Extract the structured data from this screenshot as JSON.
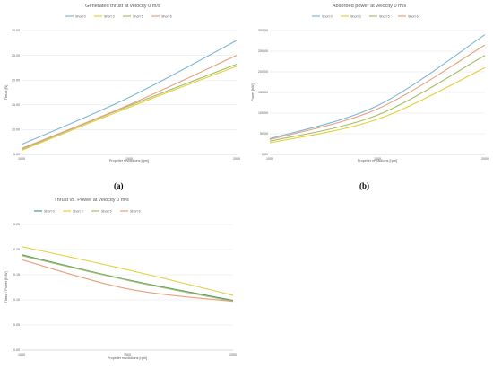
{
  "chart_data": [
    {
      "type": "line",
      "title": "Generated thrust at velocity 0 m/s",
      "xlabel": "Propeller revolutions [rpm]",
      "ylabel": "Thrust [N]",
      "x": [
        1000,
        1500,
        2000
      ],
      "xlim": [
        1000,
        2000
      ],
      "ylim": [
        5,
        30
      ],
      "yticks": [
        "5.00",
        "10.00",
        "15.00",
        "20.00",
        "25.00",
        "30.00"
      ],
      "xticks": [
        "1000",
        "1500",
        "2000"
      ],
      "grid": true,
      "legend": "top",
      "series": [
        {
          "name": "Short 0",
          "color": "#7fb6d9",
          "points": [
            [
              1000,
              7.0
            ],
            [
              1500,
              16.5
            ],
            [
              2000,
              28.0
            ]
          ]
        },
        {
          "name": "Short 3",
          "color": "#e3cf3c",
          "points": [
            [
              1000,
              5.8
            ],
            [
              1500,
              14.5
            ],
            [
              2000,
              22.8
            ]
          ]
        },
        {
          "name": "Short 5",
          "color": "#a6bf6a",
          "points": [
            [
              1000,
              6.0
            ],
            [
              1500,
              14.8
            ],
            [
              2000,
              23.2
            ]
          ]
        },
        {
          "name": "Short 6",
          "color": "#e8a07c",
          "points": [
            [
              1000,
              6.2
            ],
            [
              1500,
              15.0
            ],
            [
              2000,
              25.0
            ]
          ]
        }
      ]
    },
    {
      "type": "line",
      "title": "Absorbed power at velocity 0 m/s",
      "xlabel": "Propeller revolutions [rpm]",
      "ylabel": "Power [kW]",
      "x": [
        1000,
        1500,
        2000
      ],
      "xlim": [
        1000,
        2000
      ],
      "ylim": [
        0,
        300
      ],
      "yticks": [
        "0.00",
        "50.00",
        "100.00",
        "150.00",
        "200.00",
        "250.00",
        "300.00"
      ],
      "xticks": [
        "1000",
        "1500",
        "2000"
      ],
      "grid": true,
      "legend": "top",
      "series": [
        {
          "name": "Short 0",
          "color": "#7fb6d9",
          "points": [
            [
              1000,
              38
            ],
            [
              1500,
              118
            ],
            [
              2000,
              290
            ]
          ]
        },
        {
          "name": "Short 3",
          "color": "#e3cf3c",
          "points": [
            [
              1000,
              28
            ],
            [
              1500,
              85
            ],
            [
              2000,
              210
            ]
          ]
        },
        {
          "name": "Short 5",
          "color": "#a6bf6a",
          "points": [
            [
              1000,
              32
            ],
            [
              1500,
              95
            ],
            [
              2000,
              240
            ]
          ]
        },
        {
          "name": "Short 6",
          "color": "#e8a07c",
          "points": [
            [
              1000,
              36
            ],
            [
              1500,
              110
            ],
            [
              2000,
              265
            ]
          ]
        }
      ]
    },
    {
      "type": "line",
      "title": "Thrust vs. Power at velocity 0 m/s",
      "xlabel": "Propeller revolutions [rpm]",
      "ylabel": "Thrust / Power [N/W]",
      "x": [
        1000,
        1500,
        2000
      ],
      "xlim": [
        1000,
        2000
      ],
      "ylim": [
        0,
        0.25
      ],
      "yticks": [
        "0.00",
        "0.05",
        "0.10",
        "0.15",
        "0.20",
        "0.25"
      ],
      "xticks": [
        "1000",
        "1500",
        "2000"
      ],
      "grid": true,
      "legend": "top",
      "series": [
        {
          "name": "Short 0",
          "color": "#4f9a6e",
          "points": [
            [
              1000,
              0.19
            ],
            [
              1500,
              0.14
            ],
            [
              2000,
              0.099
            ]
          ]
        },
        {
          "name": "Short 3",
          "color": "#e3cf3c",
          "points": [
            [
              1000,
              0.206
            ],
            [
              1500,
              0.16
            ],
            [
              2000,
              0.109
            ]
          ]
        },
        {
          "name": "Short 5",
          "color": "#a6bf6a",
          "points": [
            [
              1000,
              0.188
            ],
            [
              1500,
              0.139
            ],
            [
              2000,
              0.097
            ]
          ]
        },
        {
          "name": "Short 6",
          "color": "#e8a07c",
          "points": [
            [
              1000,
              0.18
            ],
            [
              1500,
              0.122
            ],
            [
              2000,
              0.097
            ]
          ]
        }
      ]
    }
  ],
  "labels": {
    "a": "(a)",
    "b": "(b)"
  }
}
